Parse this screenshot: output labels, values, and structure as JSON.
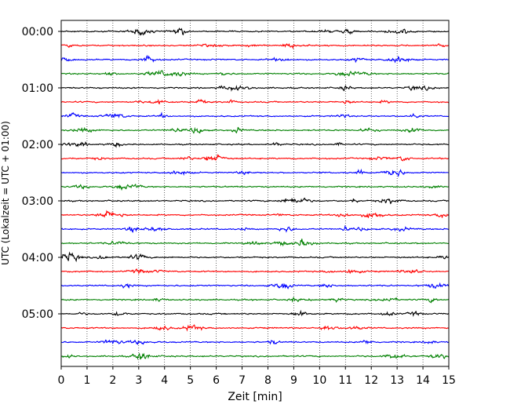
{
  "chart_data": {
    "type": "line",
    "xlabel": "Zeit  [min]",
    "ylabel": "UTC (Lokalzeit = UTC + 01:00)",
    "xlim": [
      0,
      15
    ],
    "x_ticks": [
      "0",
      "1",
      "2",
      "3",
      "4",
      "5",
      "6",
      "7",
      "8",
      "9",
      "10",
      "11",
      "12",
      "13",
      "14",
      "15"
    ],
    "y_ticks": [
      "00:00",
      "01:00",
      "02:00",
      "03:00",
      "04:00",
      "05:00"
    ],
    "grid": "vertical dotted",
    "trace_minutes": 15,
    "trace_colors": [
      "#000000",
      "#ff0000",
      "#0000ff",
      "#008000"
    ],
    "series": [
      {
        "start": "00:00",
        "color": "#000000"
      },
      {
        "start": "00:15",
        "color": "#ff0000"
      },
      {
        "start": "00:30",
        "color": "#0000ff"
      },
      {
        "start": "00:45",
        "color": "#008000"
      },
      {
        "start": "01:00",
        "color": "#000000"
      },
      {
        "start": "01:15",
        "color": "#ff0000"
      },
      {
        "start": "01:30",
        "color": "#0000ff"
      },
      {
        "start": "01:45",
        "color": "#008000"
      },
      {
        "start": "02:00",
        "color": "#000000"
      },
      {
        "start": "02:15",
        "color": "#ff0000"
      },
      {
        "start": "02:30",
        "color": "#0000ff"
      },
      {
        "start": "02:45",
        "color": "#008000"
      },
      {
        "start": "03:00",
        "color": "#000000"
      },
      {
        "start": "03:15",
        "color": "#ff0000"
      },
      {
        "start": "03:30",
        "color": "#0000ff"
      },
      {
        "start": "03:45",
        "color": "#008000"
      },
      {
        "start": "04:00",
        "color": "#000000"
      },
      {
        "start": "04:15",
        "color": "#ff0000"
      },
      {
        "start": "04:30",
        "color": "#0000ff"
      },
      {
        "start": "04:45",
        "color": "#008000"
      },
      {
        "start": "05:00",
        "color": "#000000"
      },
      {
        "start": "05:15",
        "color": "#ff0000"
      },
      {
        "start": "05:30",
        "color": "#0000ff"
      },
      {
        "start": "05:45",
        "color": "#008000"
      }
    ]
  }
}
